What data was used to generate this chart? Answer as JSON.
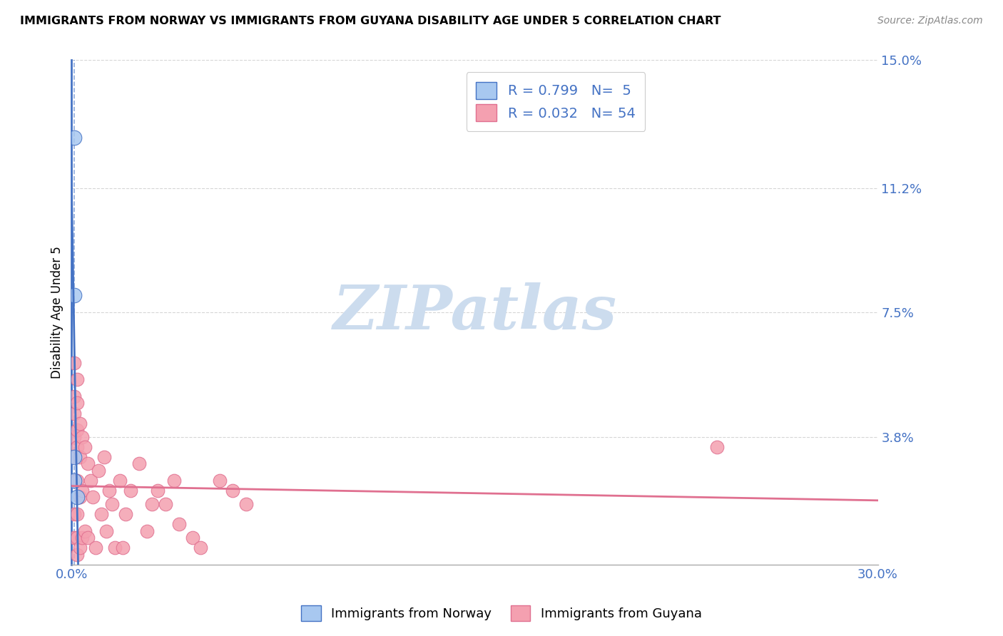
{
  "title": "IMMIGRANTS FROM NORWAY VS IMMIGRANTS FROM GUYANA DISABILITY AGE UNDER 5 CORRELATION CHART",
  "source": "Source: ZipAtlas.com",
  "ylabel": "Disability Age Under 5",
  "xlim": [
    0,
    0.3
  ],
  "ylim": [
    0,
    0.15
  ],
  "ytick_labels": [
    "3.8%",
    "7.5%",
    "11.2%",
    "15.0%"
  ],
  "ytick_values": [
    0.038,
    0.075,
    0.112,
    0.15
  ],
  "xtick_labels": [
    "0.0%",
    "30.0%"
  ],
  "xtick_values": [
    0.0,
    0.3
  ],
  "xtick_minor_values": [
    0.06,
    0.12,
    0.18,
    0.24
  ],
  "norway_R": 0.799,
  "norway_N": 5,
  "guyana_R": 0.032,
  "guyana_N": 54,
  "norway_color": "#a8c8f0",
  "guyana_color": "#f4a0b0",
  "norway_line_color": "#4472c4",
  "guyana_line_color": "#e07090",
  "legend_text_color": "#4472c4",
  "norway_scatter_x": [
    0.001,
    0.001,
    0.001,
    0.001,
    0.002
  ],
  "norway_scatter_y": [
    0.127,
    0.08,
    0.032,
    0.025,
    0.02
  ],
  "guyana_scatter_x": [
    0.001,
    0.001,
    0.001,
    0.001,
    0.001,
    0.001,
    0.001,
    0.001,
    0.002,
    0.002,
    0.002,
    0.002,
    0.002,
    0.002,
    0.002,
    0.002,
    0.003,
    0.003,
    0.003,
    0.003,
    0.004,
    0.004,
    0.004,
    0.005,
    0.005,
    0.006,
    0.006,
    0.007,
    0.008,
    0.009,
    0.01,
    0.011,
    0.012,
    0.013,
    0.014,
    0.015,
    0.016,
    0.018,
    0.019,
    0.02,
    0.022,
    0.025,
    0.028,
    0.03,
    0.032,
    0.035,
    0.038,
    0.04,
    0.045,
    0.048,
    0.055,
    0.06,
    0.065,
    0.24
  ],
  "guyana_scatter_y": [
    0.06,
    0.05,
    0.045,
    0.038,
    0.032,
    0.025,
    0.015,
    0.008,
    0.055,
    0.048,
    0.04,
    0.035,
    0.025,
    0.015,
    0.008,
    0.003,
    0.042,
    0.032,
    0.02,
    0.005,
    0.038,
    0.022,
    0.008,
    0.035,
    0.01,
    0.03,
    0.008,
    0.025,
    0.02,
    0.005,
    0.028,
    0.015,
    0.032,
    0.01,
    0.022,
    0.018,
    0.005,
    0.025,
    0.005,
    0.015,
    0.022,
    0.03,
    0.01,
    0.018,
    0.022,
    0.018,
    0.025,
    0.012,
    0.008,
    0.005,
    0.025,
    0.022,
    0.018,
    0.035
  ],
  "background_color": "#ffffff",
  "watermark_text": "ZIPatlas",
  "watermark_color": "#ccdcee"
}
